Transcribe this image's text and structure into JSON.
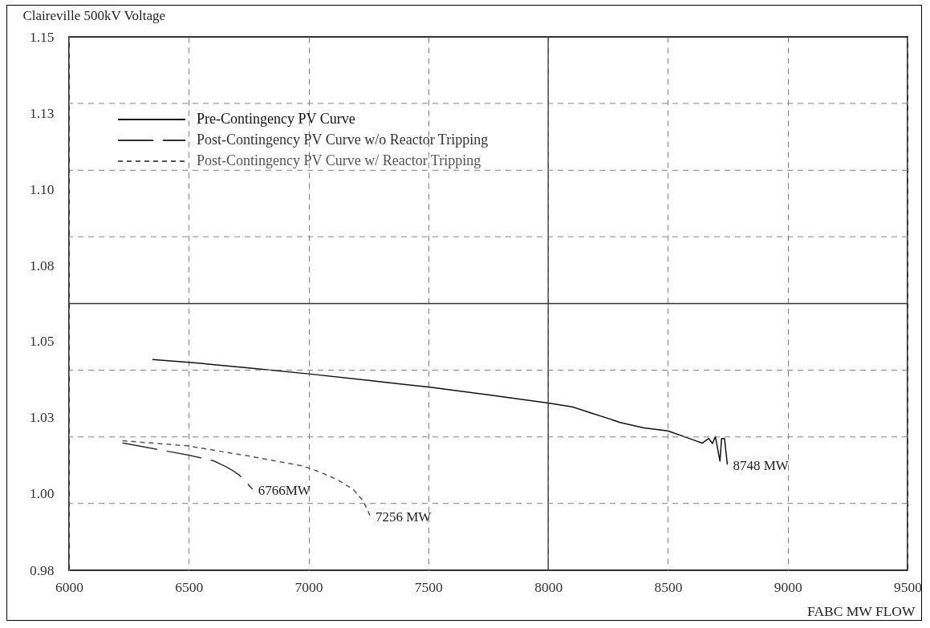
{
  "chart_data": {
    "type": "line",
    "xlabel": "FABC MW FLOW",
    "ylabel": "Claireville 500kV Voltage",
    "series": [
      {
        "name": "Pre-Contingency PV Curve",
        "color": "#111111",
        "line_style": "solid",
        "x": [
          6348,
          6500,
          6750,
          7000,
          7250,
          7500,
          7750,
          8000,
          8100,
          8180,
          8234,
          8300,
          8400,
          8500,
          8600,
          8643,
          8670,
          8686,
          8698,
          8717,
          8724,
          8736,
          8748
        ],
        "values": [
          1.0472,
          1.0463,
          1.0445,
          1.0426,
          1.0405,
          1.0384,
          1.0359,
          1.0333,
          1.0321,
          1.0301,
          1.0288,
          1.0271,
          1.0254,
          1.0244,
          1.0217,
          1.0205,
          1.022,
          1.0204,
          1.0226,
          1.0148,
          1.022,
          1.022,
          1.0137
        ]
      },
      {
        "name": "Post-Contingency PV Curve w/o Reactor Tripping",
        "color": "#333333",
        "line_style": "dashed",
        "x": [
          6223,
          6350,
          6500,
          6603,
          6650,
          6683,
          6710,
          6740,
          6766
        ],
        "values": [
          1.0206,
          1.0188,
          1.0167,
          1.0149,
          1.0132,
          1.0118,
          1.0104,
          1.008,
          1.0058
        ]
      },
      {
        "name": "Post-Contingency PV Curve w/ Reactor Tripping",
        "color": "#555555",
        "line_style": "dashed",
        "x": [
          6223,
          6500,
          6750,
          6979,
          7050,
          7119,
          7186,
          7229,
          7256
        ],
        "values": [
          1.0213,
          1.0196,
          1.0164,
          1.0132,
          1.0112,
          1.0089,
          1.0058,
          1.002,
          0.9975
        ]
      }
    ],
    "xlim": [
      6000,
      9500
    ],
    "xticks": [
      6000,
      6500,
      7000,
      7500,
      8000,
      8500,
      9000,
      9500
    ],
    "ylim": [
      0.98,
      1.15
    ],
    "yticks": [
      0.98,
      {
        "value": 1.0043,
        "label": "1.00"
      },
      {
        "value": 1.0286,
        "label": "1.03"
      },
      {
        "value": 1.0529,
        "label": "1.05"
      },
      {
        "value": 1.0771,
        "label": "1.08"
      },
      {
        "value": 1.1014,
        "label": "1.10"
      },
      {
        "value": 1.1257,
        "label": "1.13"
      },
      1.15
    ],
    "grid": "x",
    "legend": "top left",
    "marker": "none",
    "ref_lines": [
      {
        "axis": "x",
        "value": 8000,
        "line_style": "solid",
        "color": "#333333"
      },
      {
        "axis": "y",
        "value": 1.065,
        "line_style": "solid",
        "color": "#333333"
      },
      {
        "axis": "y",
        "value": 1.0013,
        "line_style": "dashed",
        "color": "#808080"
      },
      {
        "axis": "y",
        "value": 1.0225,
        "line_style": "dashed",
        "color": "#808080"
      },
      {
        "axis": "y",
        "value": 1.0438,
        "line_style": "dashed",
        "color": "#808080"
      },
      {
        "axis": "y",
        "value": 1.0863,
        "line_style": "dashed",
        "color": "#808080"
      },
      {
        "axis": "y",
        "value": 1.1075,
        "line_style": "dashed",
        "color": "#808080"
      },
      {
        "axis": "y",
        "value": 1.1288,
        "line_style": "dashed",
        "color": "#808080"
      }
    ],
    "annotations": [
      {
        "text": "6766MW",
        "x": 6766,
        "y": 1.0058
      },
      {
        "text": "7256 MW",
        "x": 7256,
        "y": 0.9975
      },
      {
        "text": "8748 MW",
        "x": 8748,
        "y": 1.0137
      }
    ]
  }
}
